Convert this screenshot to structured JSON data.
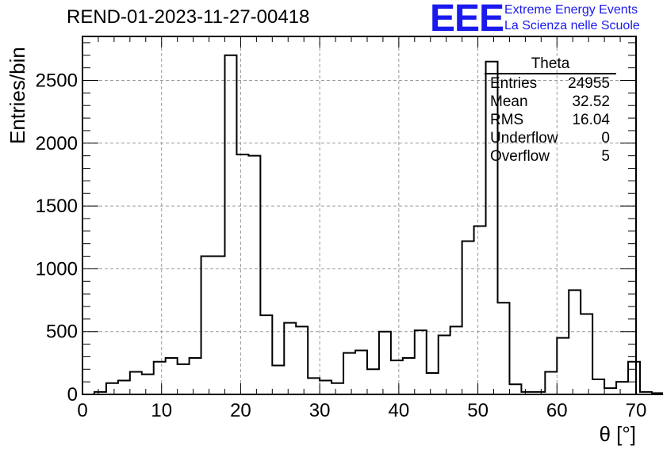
{
  "chart_data": {
    "type": "bar",
    "style": "histogram-step",
    "title": "REND-01-2023-11-27-00418",
    "xlabel": "θ [°]",
    "ylabel": "Entries/bin",
    "xlim": [
      0,
      70
    ],
    "ylim": [
      0,
      2850
    ],
    "grid": true,
    "x_ticks": [
      0,
      10,
      20,
      30,
      40,
      50,
      60,
      70
    ],
    "y_ticks": [
      0,
      500,
      1000,
      1500,
      2000,
      2500
    ],
    "bin_width": 1.5,
    "bin_start": 1.5,
    "values": [
      20,
      90,
      110,
      180,
      160,
      260,
      290,
      240,
      290,
      1100,
      1100,
      2700,
      1910,
      1900,
      630,
      230,
      570,
      540,
      130,
      110,
      90,
      330,
      350,
      200,
      500,
      270,
      290,
      510,
      170,
      470,
      540,
      1220,
      1340,
      2650,
      730,
      80,
      20,
      20,
      180,
      450,
      830,
      640,
      120,
      50,
      100,
      260,
      20,
      10
    ],
    "color": "#000000"
  },
  "stats_box": {
    "title": "Theta",
    "rows": [
      {
        "label": "Entries",
        "value": "24955"
      },
      {
        "label": "Mean",
        "value": "32.52"
      },
      {
        "label": "RMS",
        "value": "16.04"
      },
      {
        "label": "Underflow",
        "value": "0"
      },
      {
        "label": "Overflow",
        "value": "5"
      }
    ]
  },
  "logo": {
    "text": "EEE",
    "line1": "Extreme Energy Events",
    "line2": "La Scienza nelle Scuole",
    "color": "#1a1aee"
  }
}
